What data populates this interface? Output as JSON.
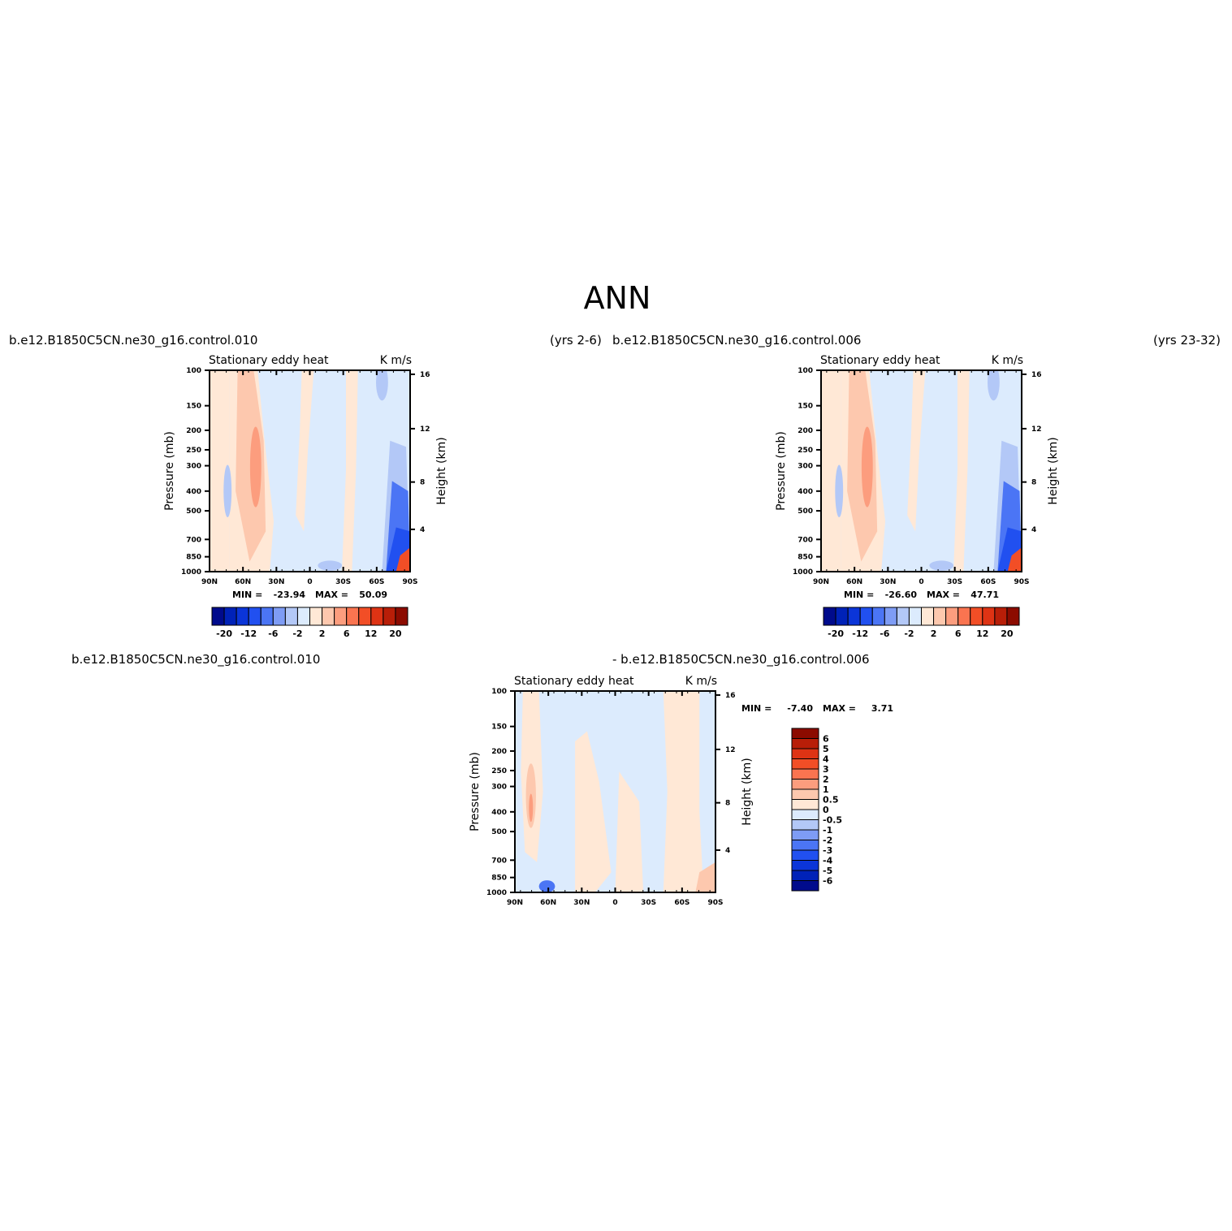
{
  "figure": {
    "title": "ANN",
    "caption_left": "b.e12.B1850C5CN.ne30_g16.control.010",
    "caption_left_years": "(yrs 2-6)",
    "caption_right": "b.e12.B1850C5CN.ne30_g16.control.006",
    "caption_right_years": "(yrs 23-32)",
    "caption_diff_a": "b.e12.B1850C5CN.ne30_g16.control.010",
    "caption_diff_b": "- b.e12.B1850C5CN.ne30_g16.control.006"
  },
  "colors": {
    "blues": [
      "#000b8c",
      "#0022b8",
      "#0b35d8",
      "#2150f0",
      "#4b75f5",
      "#7e9cf5",
      "#b3c8f7",
      "#dcebfd"
    ],
    "reds": [
      "#ffe8d6",
      "#fdc8ae",
      "#fc9d7e",
      "#fa7450",
      "#f24e26",
      "#de3314",
      "#b81e08",
      "#8c0b00"
    ],
    "white": "#ffffff"
  },
  "chart_data": [
    {
      "type": "contour",
      "panel": "control.010",
      "left_title": "Stationary eddy heat",
      "right_title": "K m/s",
      "ylabel": "Pressure (mb)",
      "ylabel_right": "Height (km)",
      "x_ticks": [
        "90N",
        "60N",
        "30N",
        "0",
        "30S",
        "60S",
        "90S"
      ],
      "y_ticks": [
        "100",
        "150",
        "200",
        "250",
        "300",
        "400",
        "500",
        "700",
        "850",
        "1000"
      ],
      "y_ticks_right": [
        "16",
        "12",
        "8",
        "4"
      ],
      "min_label": "MIN =",
      "min_value": "-23.94",
      "max_label": "MAX =",
      "max_value": "50.09",
      "colorbar_labels": [
        "-20",
        "-12",
        "-6",
        "-2",
        "2",
        "6",
        "12",
        "20"
      ]
    },
    {
      "type": "contour",
      "panel": "control.006",
      "left_title": "Stationary eddy heat",
      "right_title": "K m/s",
      "ylabel": "Pressure (mb)",
      "ylabel_right": "Height (km)",
      "x_ticks": [
        "90N",
        "60N",
        "30N",
        "0",
        "30S",
        "60S",
        "90S"
      ],
      "y_ticks": [
        "100",
        "150",
        "200",
        "250",
        "300",
        "400",
        "500",
        "700",
        "850",
        "1000"
      ],
      "y_ticks_right": [
        "16",
        "12",
        "8",
        "4"
      ],
      "min_label": "MIN =",
      "min_value": "-26.60",
      "max_label": "MAX =",
      "max_value": "47.71",
      "colorbar_labels": [
        "-20",
        "-12",
        "-6",
        "-2",
        "2",
        "6",
        "12",
        "20"
      ]
    },
    {
      "type": "contour",
      "panel": "difference",
      "left_title": "Stationary eddy heat",
      "right_title": "K m/s",
      "ylabel": "Pressure (mb)",
      "ylabel_right": "Height (km)",
      "x_ticks": [
        "90N",
        "60N",
        "30N",
        "0",
        "30S",
        "60S",
        "90S"
      ],
      "y_ticks": [
        "100",
        "150",
        "200",
        "250",
        "300",
        "400",
        "500",
        "700",
        "850",
        "1000"
      ],
      "y_ticks_right": [
        "16",
        "12",
        "8",
        "4"
      ],
      "min_label": "MIN =",
      "min_value": "-7.40",
      "max_label": "MAX =",
      "max_value": "3.71",
      "colorbar_labels": [
        "6",
        "5",
        "4",
        "3",
        "2",
        "1",
        "0.5",
        "0",
        "-0.5",
        "-1",
        "-2",
        "-3",
        "-4",
        "-5",
        "-6"
      ]
    }
  ]
}
